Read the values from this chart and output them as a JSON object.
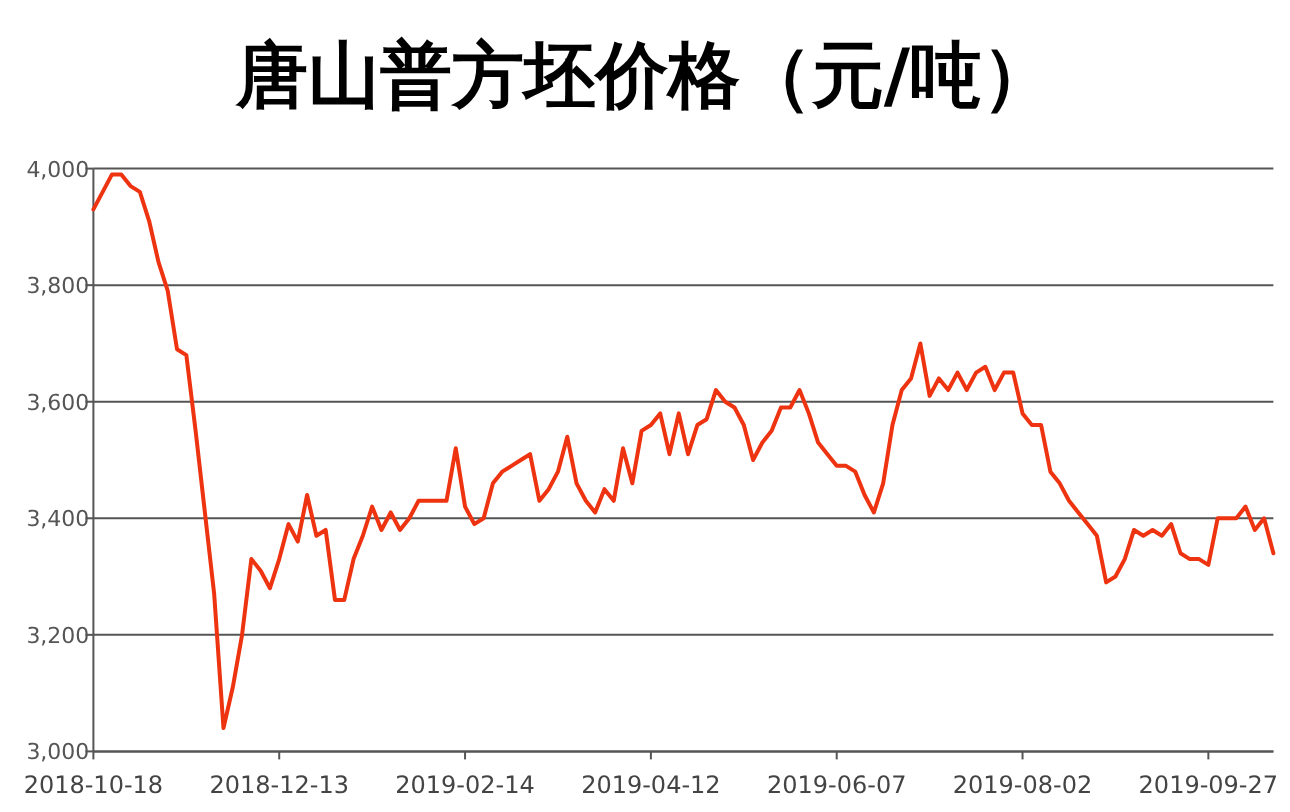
{
  "chart_data": {
    "type": "line",
    "title": "唐山普方坯价格（元/吨）",
    "categories": [
      "2018-10-18",
      null,
      null,
      null,
      null,
      null,
      null,
      null,
      null,
      null,
      null,
      null,
      null,
      null,
      null,
      null,
      null,
      null,
      null,
      null,
      "2018-12-13",
      null,
      null,
      null,
      null,
      null,
      null,
      null,
      null,
      null,
      null,
      null,
      null,
      null,
      null,
      null,
      null,
      null,
      null,
      null,
      "2019-02-14",
      null,
      null,
      null,
      null,
      null,
      null,
      null,
      null,
      null,
      null,
      null,
      null,
      null,
      null,
      null,
      null,
      null,
      null,
      null,
      "2019-04-12",
      null,
      null,
      null,
      null,
      null,
      null,
      null,
      null,
      null,
      null,
      null,
      null,
      null,
      null,
      null,
      null,
      null,
      null,
      null,
      "2019-06-07",
      null,
      null,
      null,
      null,
      null,
      null,
      null,
      null,
      null,
      null,
      null,
      null,
      null,
      null,
      null,
      null,
      null,
      null,
      null,
      "2019-08-02",
      null,
      null,
      null,
      null,
      null,
      null,
      null,
      null,
      null,
      null,
      null,
      null,
      null,
      null,
      null,
      null,
      null,
      null,
      null,
      "2019-09-27",
      null,
      null,
      null,
      null,
      null,
      null,
      null
    ],
    "series": [
      {
        "color": "#ee3311",
        "values": [
          3930,
          3960,
          3990,
          3990,
          3970,
          3960,
          3910,
          3840,
          3790,
          3690,
          3680,
          3550,
          3410,
          3270,
          3040,
          3110,
          3200,
          3330,
          3310,
          3280,
          3330,
          3390,
          3360,
          3440,
          3370,
          3380,
          3260,
          3260,
          3330,
          3370,
          3420,
          3380,
          3410,
          3380,
          3400,
          3430,
          3430,
          3430,
          3430,
          3520,
          3420,
          3390,
          3400,
          3460,
          3480,
          3490,
          3500,
          3510,
          3430,
          3450,
          3480,
          3540,
          3460,
          3430,
          3410,
          3450,
          3430,
          3520,
          3460,
          3550,
          3560,
          3580,
          3510,
          3580,
          3510,
          3560,
          3570,
          3620,
          3600,
          3590,
          3560,
          3500,
          3530,
          3550,
          3590,
          3590,
          3620,
          3580,
          3530,
          3510,
          3490,
          3490,
          3480,
          3440,
          3410,
          3460,
          3560,
          3620,
          3640,
          3700,
          3610,
          3640,
          3620,
          3650,
          3620,
          3650,
          3660,
          3620,
          3650,
          3650,
          3580,
          3560,
          3560,
          3480,
          3460,
          3430,
          3410,
          3390,
          3370,
          3290,
          3300,
          3330,
          3380,
          3370,
          3380,
          3370,
          3390,
          3340,
          3330,
          3330,
          3320,
          3400,
          3400,
          3400,
          3420,
          3380,
          3400,
          3340
        ]
      }
    ],
    "ylim": [
      3000,
      4000
    ],
    "yticks": [
      {
        "value": 3000,
        "label": "3,000"
      },
      {
        "value": 3200,
        "label": "3,200"
      },
      {
        "value": 3400,
        "label": "3,400"
      },
      {
        "value": 3600,
        "label": "3,600"
      },
      {
        "value": 3800,
        "label": "3,800"
      },
      {
        "value": 4000,
        "label": "4,000"
      }
    ],
    "grid": "y",
    "marker": "none",
    "line_style": "solid"
  }
}
